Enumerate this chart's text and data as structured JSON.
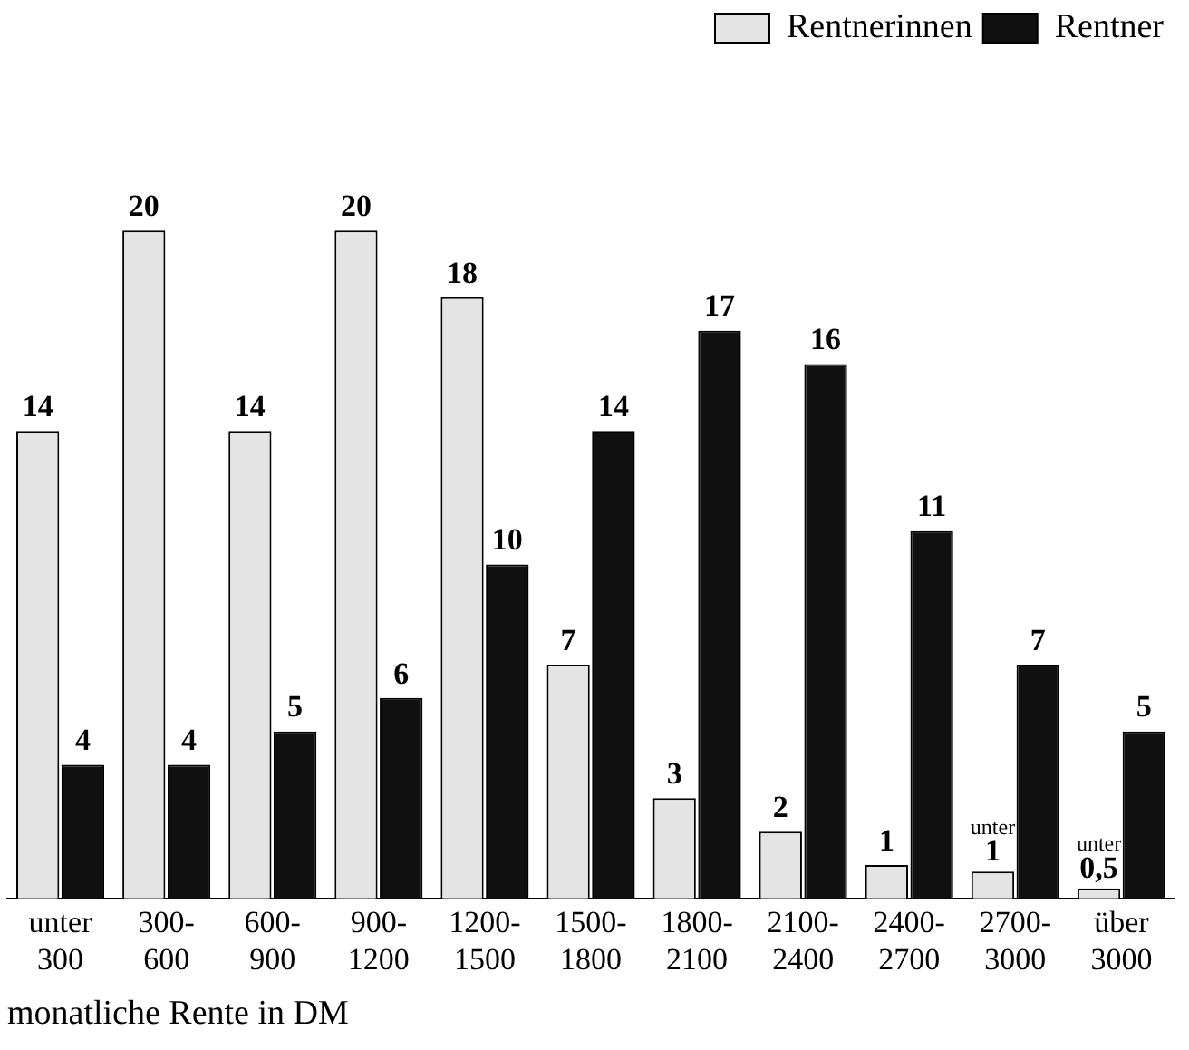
{
  "chart_data": {
    "type": "bar",
    "xlabel": "monatliche Rente in DM",
    "categories": [
      "unter 300",
      "300-600",
      "600-900",
      "900-1200",
      "1200-1500",
      "1500-1800",
      "1800-2100",
      "2100-2400",
      "2400-2700",
      "2700-3000",
      "über 3000"
    ],
    "series": [
      {
        "name": "Rentnerinnen",
        "color": "#e4e4e4",
        "values": [
          14,
          20,
          14,
          20,
          18,
          7,
          3,
          2,
          1,
          0.8,
          0.3
        ],
        "value_labels": [
          "14",
          "20",
          "14",
          "20",
          "18",
          "7",
          "3",
          "2",
          "1",
          "unter 1",
          "unter 0,5"
        ]
      },
      {
        "name": "Rentner",
        "color": "#111111",
        "values": [
          4,
          4,
          5,
          6,
          10,
          14,
          17,
          16,
          11,
          7,
          5
        ]
      }
    ],
    "data_labels": true,
    "tick_labels": "x",
    "grid": false,
    "legend": "top right"
  }
}
